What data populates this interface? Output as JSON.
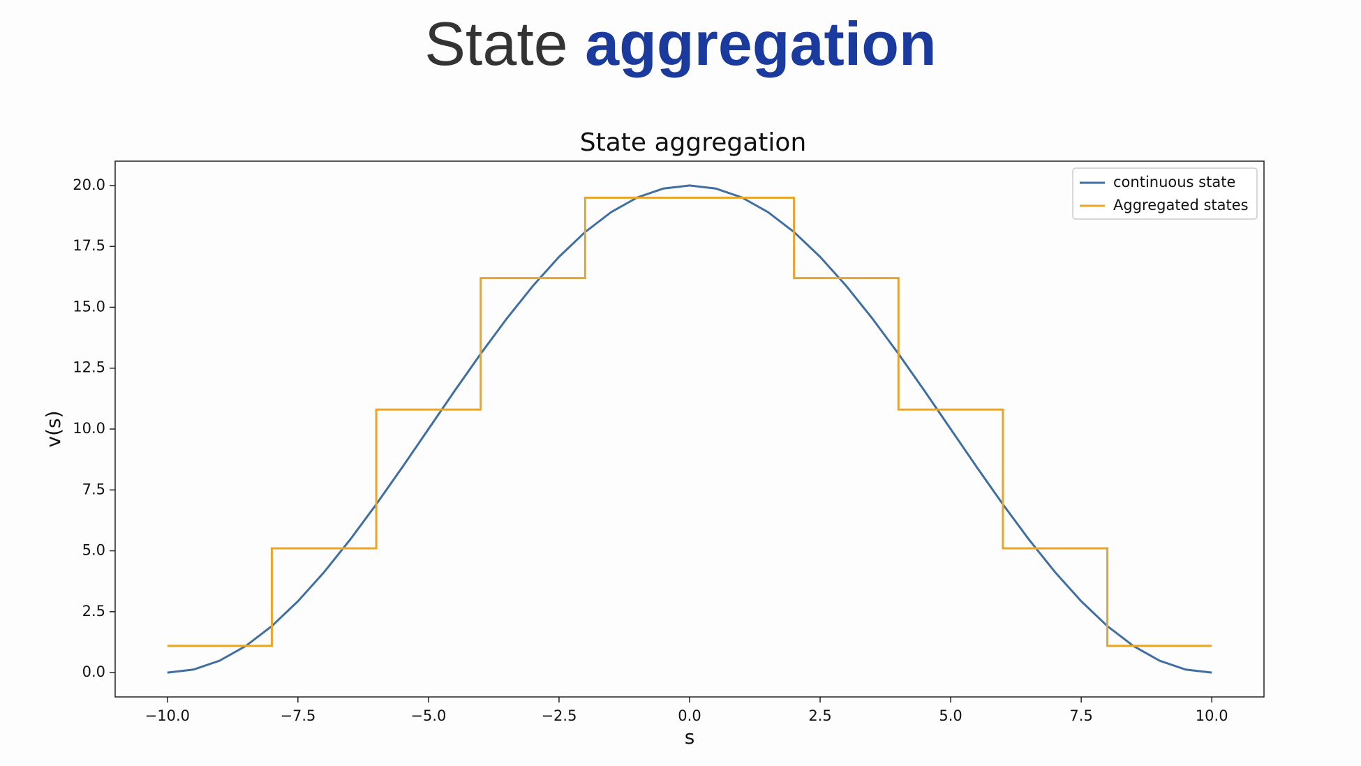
{
  "header": {
    "title": [
      "State",
      "aggregation"
    ]
  },
  "chart_data": {
    "type": "line",
    "title": "State aggregation",
    "x_label": "s",
    "y_label": "v(s)",
    "xlim": [
      -11,
      11
    ],
    "ylim": [
      -1,
      21
    ],
    "xticks": [
      {
        "value": -10,
        "label": "−10.0"
      },
      {
        "value": -7.5,
        "label": "−7.5"
      },
      {
        "value": -5,
        "label": "−5.0"
      },
      {
        "value": -2.5,
        "label": "−2.5"
      },
      {
        "value": 0,
        "label": "0.0"
      },
      {
        "value": 2.5,
        "label": "2.5"
      },
      {
        "value": 5,
        "label": "5.0"
      },
      {
        "value": 7.5,
        "label": "7.5"
      },
      {
        "value": 10,
        "label": "10.0"
      }
    ],
    "yticks": [
      {
        "value": 0,
        "label": "0.0"
      },
      {
        "value": 2.5,
        "label": "2.5"
      },
      {
        "value": 5,
        "label": "5.0"
      },
      {
        "value": 7.5,
        "label": "7.5"
      },
      {
        "value": 10,
        "label": "10.0"
      },
      {
        "value": 12.5,
        "label": "12.5"
      },
      {
        "value": 15,
        "label": "15.0"
      },
      {
        "value": 17.5,
        "label": "17.5"
      },
      {
        "value": 20,
        "label": "20.0"
      }
    ],
    "grid": false,
    "legend": "upper right",
    "series": [
      {
        "name": "continuous state",
        "color": "#3f6ea3",
        "x": [
          -10,
          -9.5,
          -9,
          -8.5,
          -8,
          -7.5,
          -7,
          -6.5,
          -6,
          -5.5,
          -5,
          -4.5,
          -4,
          -3.5,
          -3,
          -2.5,
          -2,
          -1.5,
          -1,
          -0.5,
          0,
          0.5,
          1,
          1.5,
          2,
          2.5,
          3,
          3.5,
          4,
          4.5,
          5,
          5.5,
          6,
          6.5,
          7,
          7.5,
          8,
          8.5,
          9,
          9.5,
          10
        ],
        "values": [
          0,
          0.123,
          0.489,
          1.09,
          1.91,
          2.929,
          4.122,
          5.46,
          6.91,
          8.436,
          10,
          11.564,
          13.09,
          14.54,
          15.878,
          17.071,
          18.09,
          18.91,
          19.511,
          19.877,
          20,
          19.877,
          19.511,
          18.91,
          18.09,
          17.071,
          15.878,
          14.54,
          13.09,
          11.564,
          10,
          8.436,
          6.91,
          5.46,
          4.122,
          2.929,
          1.91,
          1.09,
          0.489,
          0.123,
          0
        ]
      },
      {
        "name": "Aggregated states",
        "color": "#e8a52c",
        "x": [
          -10,
          -8,
          -8,
          -6,
          -6,
          -4,
          -4,
          -2,
          -2,
          2,
          2,
          4,
          4,
          6,
          6,
          8,
          8,
          10
        ],
        "values": [
          1.1,
          1.1,
          5.1,
          5.1,
          10.8,
          10.8,
          16.2,
          16.2,
          19.5,
          19.5,
          16.2,
          16.2,
          10.8,
          10.8,
          5.1,
          5.1,
          1.1,
          1.1
        ]
      }
    ]
  }
}
